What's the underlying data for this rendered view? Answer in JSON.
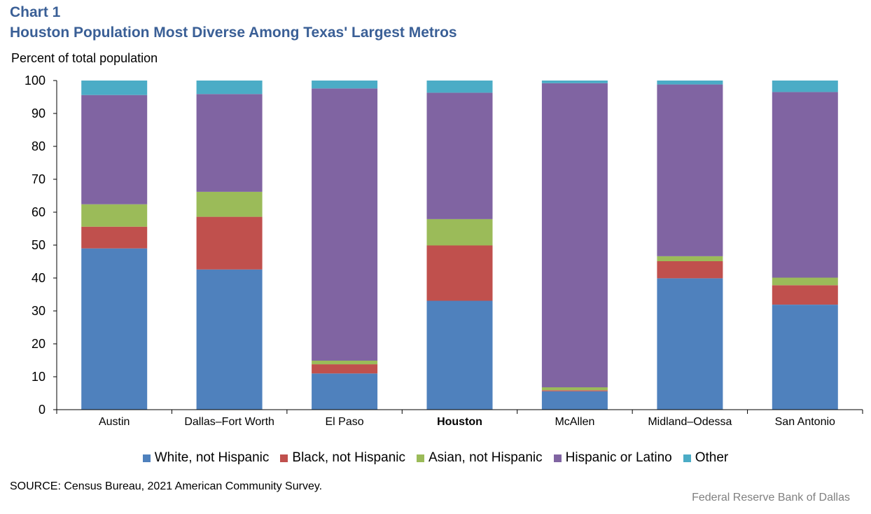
{
  "chart_number": "Chart 1",
  "chart_data": {
    "type": "bar",
    "stacked": true,
    "title": "Houston Population Most Diverse Among Texas' Largest Metros",
    "ylabel": "Percent of total population",
    "xlabel": "",
    "ylim": [
      0,
      100
    ],
    "yticks": [
      0,
      10,
      20,
      30,
      40,
      50,
      60,
      70,
      80,
      90,
      100
    ],
    "grid": false,
    "legend_position": "bottom",
    "categories": [
      "Austin",
      "Dallas–Fort Worth",
      "El Paso",
      "Houston",
      "McAllen",
      "Midland–Odessa",
      "San Antonio"
    ],
    "highlighted_category": "Houston",
    "series": [
      {
        "name": "White, not Hispanic",
        "color": "#4f81bd",
        "values": [
          49.0,
          42.6,
          11.0,
          33.1,
          5.6,
          39.9,
          31.9
        ]
      },
      {
        "name": "Black, not Hispanic",
        "color": "#c0504d",
        "values": [
          6.6,
          16.0,
          2.8,
          16.8,
          0.3,
          5.2,
          5.9
        ]
      },
      {
        "name": "Asian, not Hispanic",
        "color": "#9bbb59",
        "values": [
          6.8,
          7.6,
          1.1,
          8.0,
          0.9,
          1.5,
          2.3
        ]
      },
      {
        "name": "Hispanic or Latino",
        "color": "#8064a2",
        "values": [
          33.2,
          29.7,
          82.7,
          38.4,
          92.4,
          52.2,
          56.4
        ]
      },
      {
        "name": "Other",
        "color": "#4bacc6",
        "values": [
          4.4,
          4.1,
          2.4,
          3.7,
          0.8,
          1.2,
          3.5
        ]
      }
    ]
  },
  "source": "SOURCE: Census Bureau, 2021 American Community Survey.",
  "credit": "Federal Reserve Bank of Dallas"
}
